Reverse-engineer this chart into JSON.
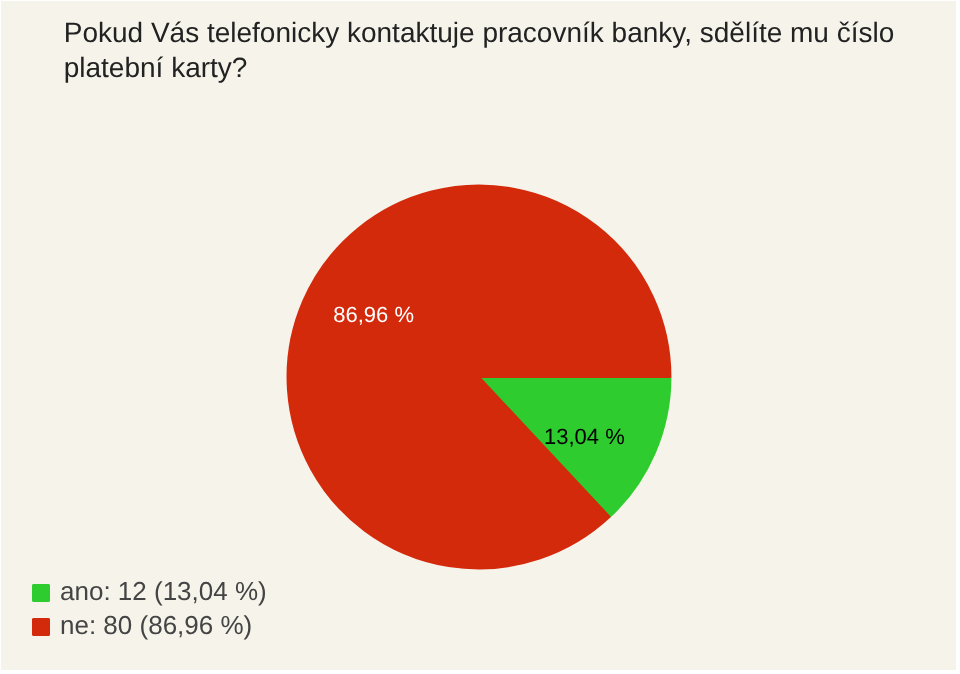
{
  "chart_data": {
    "type": "pie",
    "title": "Pokud Vás telefonicky kontaktuje pracovník banky, sdělíte mu číslo platební karty?",
    "categories": [
      "ano: 12 (13,04 %)",
      "ne: 80 (86,96 %)"
    ],
    "values": [
      13.04,
      86.96
    ],
    "colors": [
      "#2ecc2e",
      "#d42a0c"
    ],
    "value_labels": [
      "13,04 %",
      "86,96 %"
    ],
    "legend": "bottom left"
  }
}
